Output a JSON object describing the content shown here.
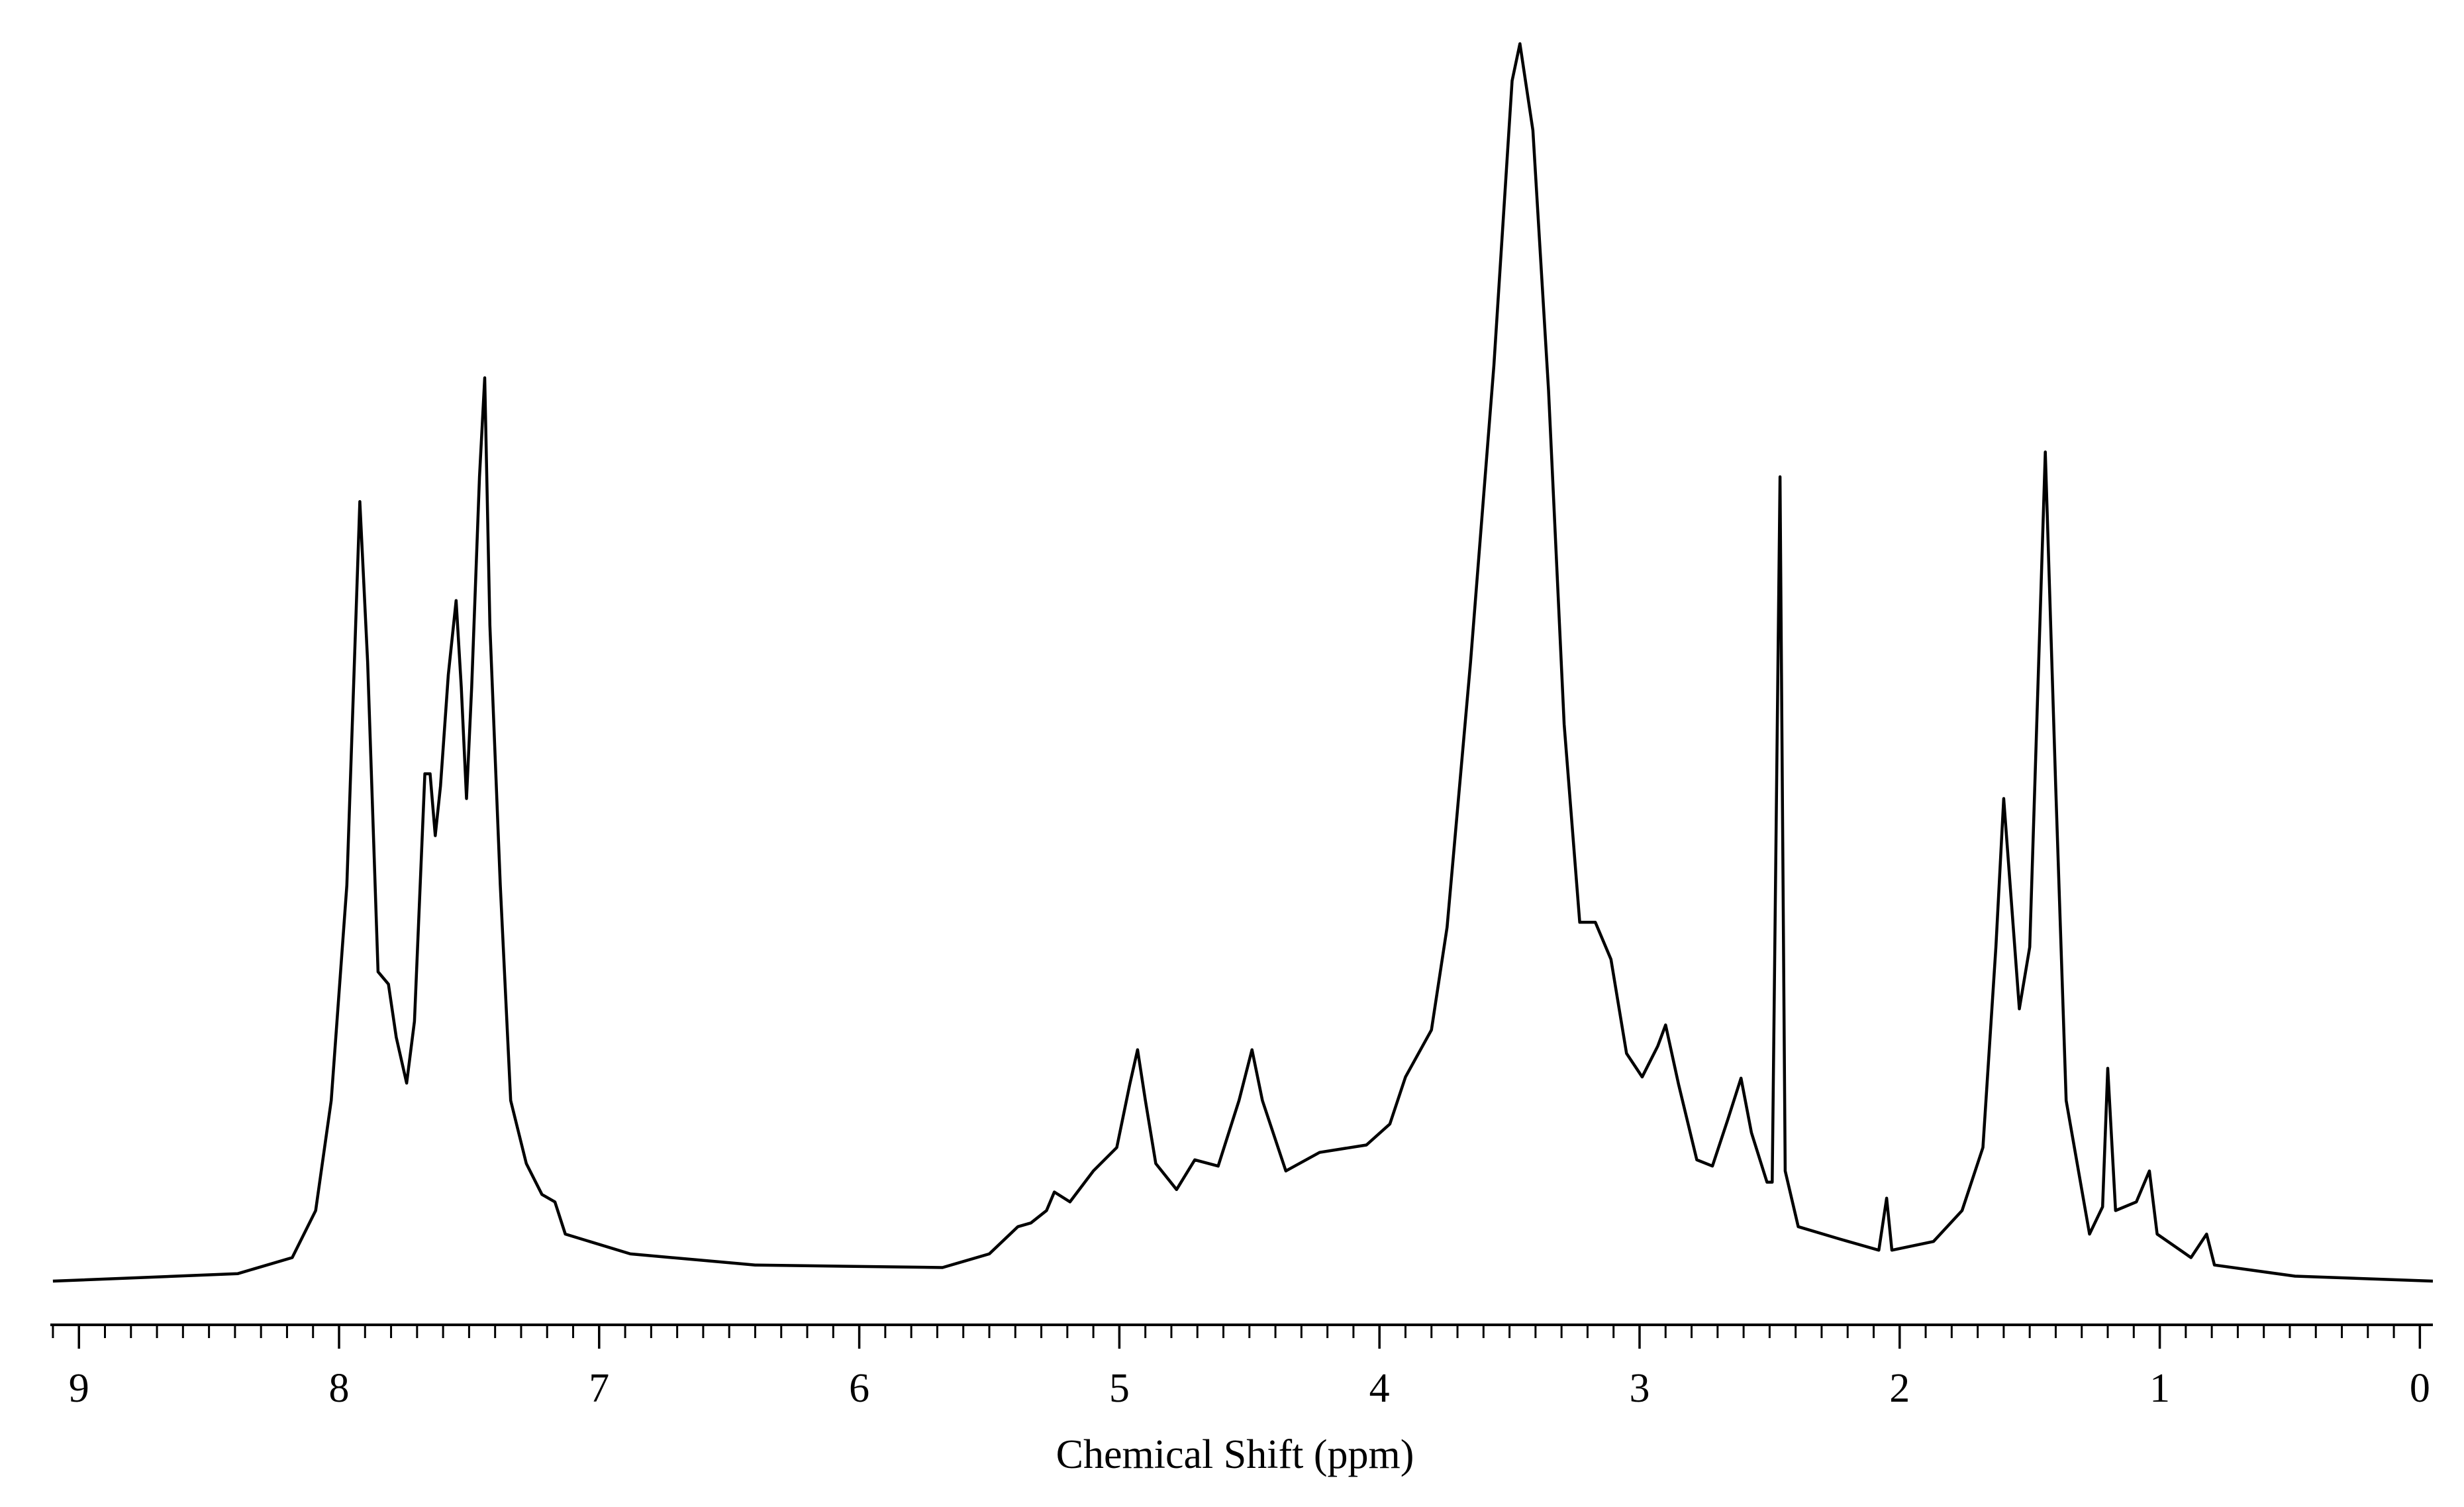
{
  "chart_data": {
    "type": "line",
    "x_label": "Chemical Shift (ppm)",
    "xlim": [
      9.11,
      -0.05
    ],
    "xticks": [
      9,
      8,
      7,
      6,
      5,
      4,
      3,
      2,
      1,
      0
    ],
    "xminorticks": [
      9.1,
      9.0,
      8.9,
      8.8,
      8.7,
      8.6,
      8.5,
      8.4,
      8.3,
      8.2,
      8.1,
      8.0,
      7.9,
      7.8,
      7.7,
      7.6,
      7.5,
      7.4,
      7.3,
      7.2,
      7.1,
      7.0,
      6.9,
      6.8,
      6.7,
      6.6,
      6.5,
      6.4,
      6.3,
      6.2,
      6.1,
      6.0,
      5.9,
      5.8,
      5.7,
      5.6,
      5.5,
      5.4,
      5.3,
      5.2,
      5.1,
      5.0,
      4.9,
      4.8,
      4.7,
      4.6,
      4.5,
      4.4,
      4.3,
      4.2,
      4.1,
      4.0,
      3.9,
      3.8,
      3.7,
      3.6,
      3.5,
      3.4,
      3.3,
      3.2,
      3.1,
      3.0,
      2.9,
      2.8,
      2.7,
      2.6,
      2.5,
      2.4,
      2.3,
      2.2,
      2.1,
      2.0,
      1.9,
      1.8,
      1.7,
      1.6,
      1.5,
      1.4,
      1.3,
      1.2,
      1.1,
      1.0,
      0.9,
      0.8,
      0.7,
      0.6,
      0.5,
      0.4,
      0.3,
      0.2,
      0.1,
      0.0
    ],
    "ylim": [
      0,
      100
    ],
    "color": "#000000",
    "x": [
      9.1,
      8.39,
      8.18,
      8.09,
      8.03,
      7.97,
      7.92,
      7.89,
      7.85,
      7.81,
      7.78,
      7.74,
      7.71,
      7.67,
      7.65,
      7.63,
      7.61,
      7.58,
      7.55,
      7.53,
      7.51,
      7.49,
      7.46,
      7.44,
      7.42,
      7.38,
      7.34,
      7.28,
      7.22,
      7.17,
      7.13,
      6.88,
      6.4,
      5.68,
      5.5,
      5.39,
      5.34,
      5.28,
      5.25,
      5.19,
      5.1,
      5.01,
      4.96,
      4.93,
      4.9,
      4.86,
      4.78,
      4.71,
      4.62,
      4.54,
      4.49,
      4.45,
      4.36,
      4.23,
      4.05,
      3.96,
      3.9,
      3.8,
      3.74,
      3.65,
      3.56,
      3.49,
      3.46,
      3.41,
      3.35,
      3.29,
      3.23,
      3.17,
      3.11,
      3.05,
      2.99,
      2.93,
      2.9,
      2.85,
      2.78,
      2.72,
      2.66,
      2.61,
      2.57,
      2.51,
      2.49,
      2.46,
      2.44,
      2.39,
      2.23,
      2.08,
      2.05,
      2.03,
      1.87,
      1.76,
      1.68,
      1.63,
      1.6,
      1.54,
      1.5,
      1.44,
      1.4,
      1.36,
      1.27,
      1.22,
      1.2,
      1.17,
      1.09,
      1.04,
      1.01,
      0.88,
      0.82,
      0.79,
      0.48,
      -0.05
    ],
    "values": [
      0,
      0.6,
      1.9,
      5.7,
      14.6,
      32,
      63,
      50,
      25,
      24,
      19.7,
      16,
      21,
      41,
      41,
      36,
      40,
      49,
      55,
      48,
      39,
      48,
      65,
      73,
      53,
      32,
      14.6,
      9.5,
      7,
      6.4,
      3.8,
      2.2,
      1.3,
      1.1,
      2.2,
      4.4,
      4.7,
      5.7,
      7.2,
      6.4,
      8.9,
      10.8,
      15.9,
      18.7,
      14.6,
      9.5,
      7.4,
      9.8,
      9.3,
      14.6,
      18.7,
      14.6,
      8.9,
      10.4,
      11,
      12.7,
      16.5,
      20.3,
      28.6,
      50,
      74,
      97,
      100,
      93,
      72,
      45,
      29,
      29,
      26,
      18.4,
      16.5,
      19,
      20.7,
      15.9,
      9.8,
      9.3,
      13.1,
      16.4,
      12,
      8,
      8,
      65,
      8.9,
      4.4,
      3.4,
      2.5,
      6.7,
      2.5,
      3.2,
      5.7,
      10.8,
      27,
      39,
      22,
      27,
      67,
      40,
      14.6,
      3.8,
      6,
      17.2,
      5.7,
      6.4,
      8.9,
      3.8,
      1.9,
      3.8,
      1.3,
      0.4,
      0
    ]
  }
}
